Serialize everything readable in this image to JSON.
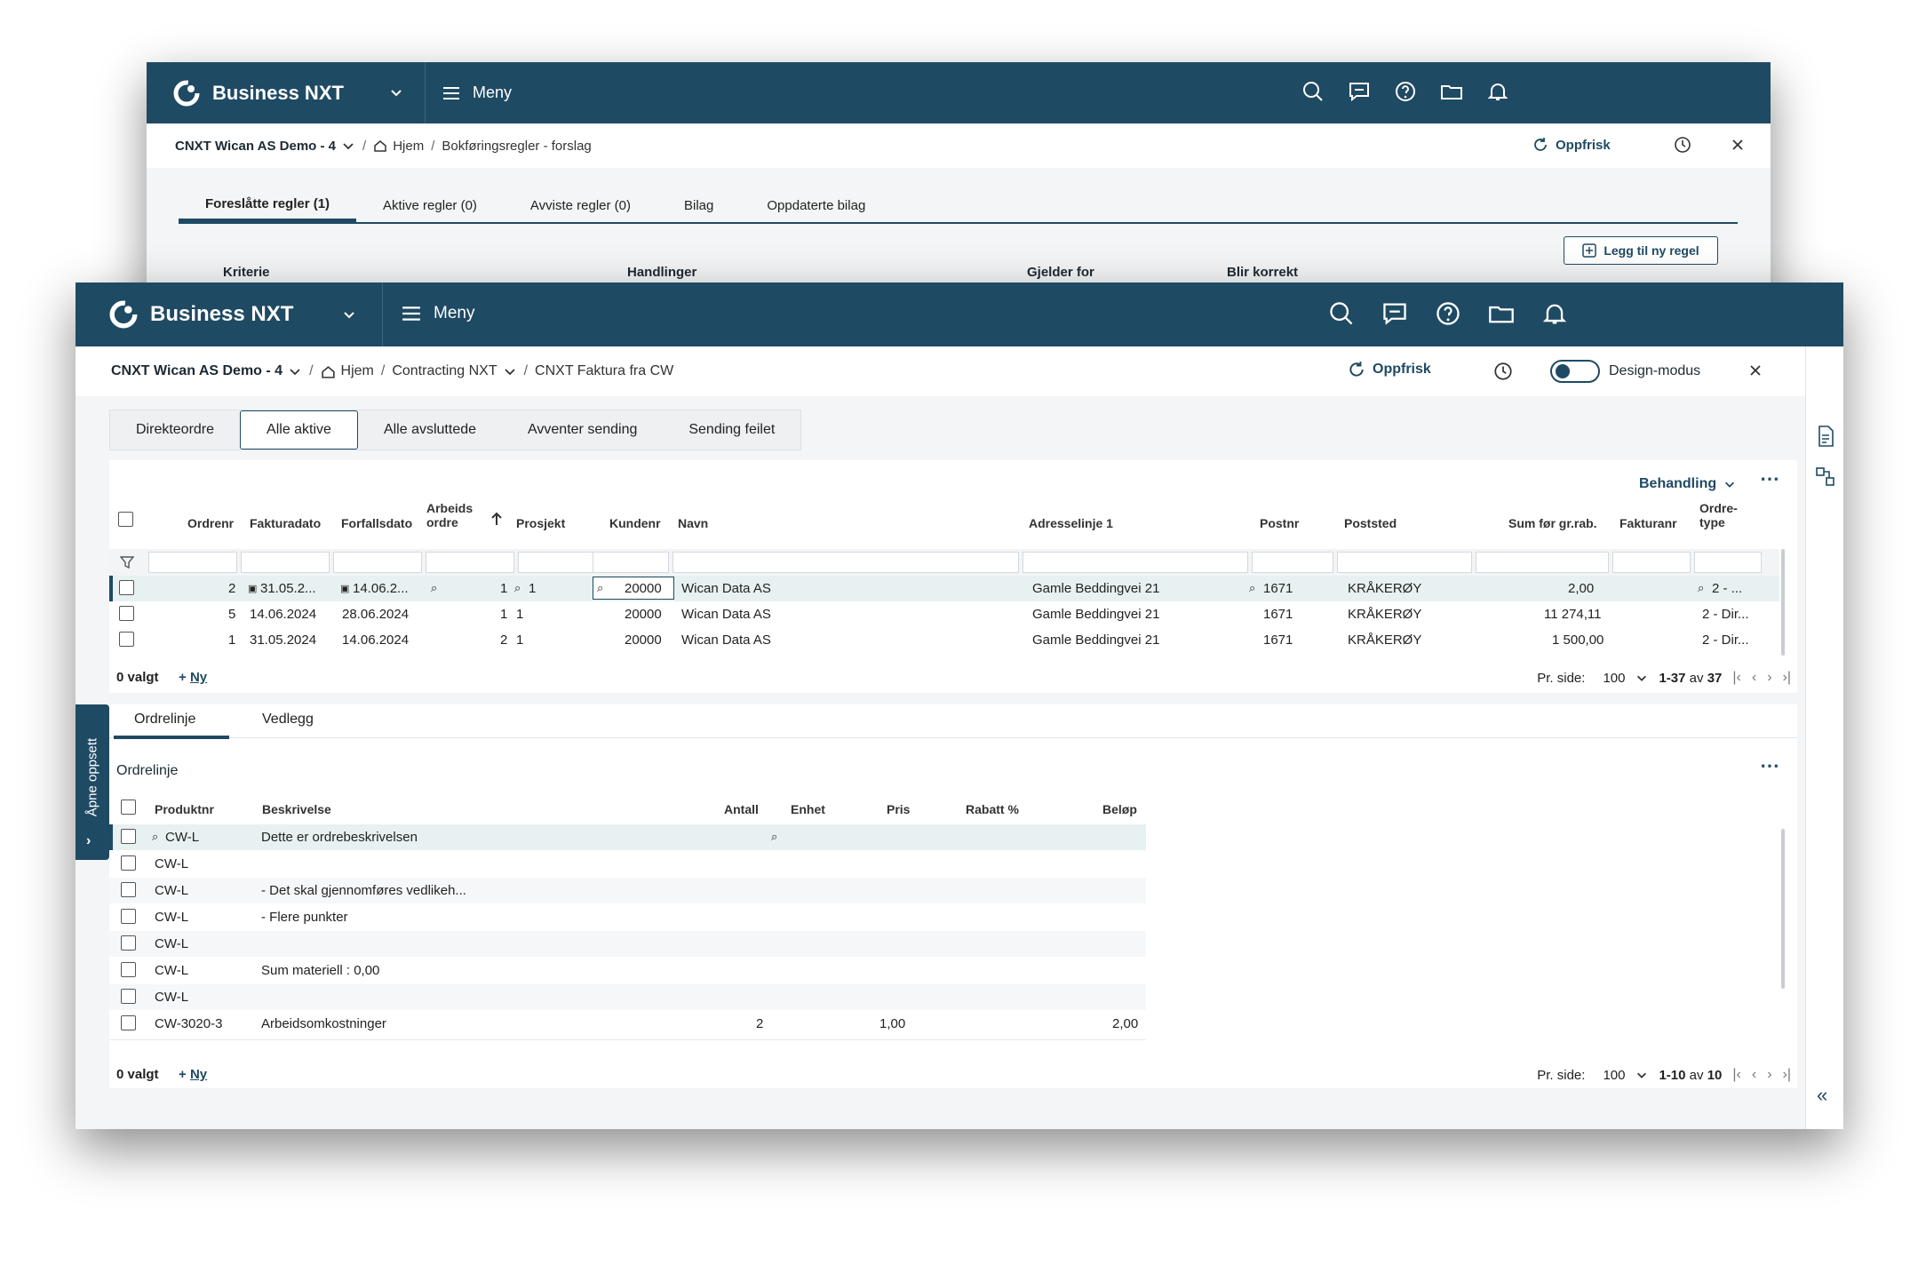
{
  "back_window": {
    "app": {
      "name": "Business NXT"
    },
    "topbar": {
      "menu_label": "Meny"
    },
    "breadcrumb": {
      "company": "CNXT Wican AS Demo - 4",
      "home": "Hjem",
      "page": "Bokføringsregler - forslag"
    },
    "refresh_label": "Oppfrisk",
    "tabs": [
      "Foreslåtte regler (1)",
      "Aktive regler (0)",
      "Avviste regler (0)",
      "Bilag",
      "Oppdaterte bilag"
    ],
    "table_headers": [
      "Kriterie",
      "Handlinger",
      "Gjelder for",
      "Blir korrekt"
    ],
    "add_rule_label": "Legg til ny regel"
  },
  "front_window": {
    "app": {
      "name": "Business NXT"
    },
    "topbar": {
      "menu_label": "Meny"
    },
    "breadcrumb": {
      "company": "CNXT Wican AS Demo - 4",
      "home": "Hjem",
      "module": "Contracting NXT",
      "page": "CNXT Faktura fra CW"
    },
    "refresh_label": "Oppfrisk",
    "design_mode_label": "Design-modus",
    "design_mode_on": false,
    "side_tab_label": "Åpne oppsett",
    "filter_tabs": [
      "Direkteordre",
      "Alle aktive",
      "Alle avsluttede",
      "Avventer sending",
      "Sending feilet"
    ],
    "active_filter_tab": "Alle aktive",
    "orders": {
      "action_label": "Behandling",
      "headers": {
        "ordrenr": "Ordrenr",
        "fakturadato": "Fakturadato",
        "forfallsdato": "Forfallsdato",
        "arbeidsordre_1": "Arbeids",
        "arbeidsordre_2": "ordre",
        "prosjekt": "Prosjekt",
        "kundenr": "Kundenr",
        "navn": "Navn",
        "adresse": "Adresselinje 1",
        "postnr": "Postnr",
        "poststed": "Poststed",
        "sum": "Sum før gr.rab.",
        "fakturanr": "Fakturanr",
        "ordretype_1": "Ordre-",
        "ordretype_2": "type"
      },
      "rows": [
        {
          "ordrenr": "2",
          "fakturadato": "31.05.2...",
          "forfallsdato": "14.06.2...",
          "arbeidsordre": "1",
          "prosjekt": "1",
          "kundenr": "20000",
          "navn": "Wican Data AS",
          "adresse": "Gamle Beddingvei 21",
          "postnr": "1671",
          "poststed": "KRÅKERØY",
          "sum": "2,00",
          "fakturanr": "",
          "ordretype": "2 - ..."
        },
        {
          "ordrenr": "5",
          "fakturadato": "14.06.2024",
          "forfallsdato": "28.06.2024",
          "arbeidsordre": "1",
          "prosjekt": "1",
          "kundenr": "20000",
          "navn": "Wican Data AS",
          "adresse": "Gamle Beddingvei 21",
          "postnr": "1671",
          "poststed": "KRÅKERØY",
          "sum": "11 274,11",
          "fakturanr": "",
          "ordretype": "2 - Dir..."
        },
        {
          "ordrenr": "1",
          "fakturadato": "31.05.2024",
          "forfallsdato": "14.06.2024",
          "arbeidsordre": "2",
          "prosjekt": "1",
          "kundenr": "20000",
          "navn": "Wican Data AS",
          "adresse": "Gamle Beddingvei 21",
          "postnr": "1671",
          "poststed": "KRÅKERØY",
          "sum": "1 500,00",
          "fakturanr": "",
          "ordretype": "2 - Dir..."
        }
      ],
      "footer": {
        "selected": "0 valgt",
        "new": "Ny",
        "per_page_label": "Pr. side:",
        "per_page": "100",
        "range": "1-37",
        "of": "av",
        "total": "37"
      }
    },
    "lines": {
      "tabs": [
        "Ordrelinje",
        "Vedlegg"
      ],
      "section_title": "Ordrelinje",
      "headers": {
        "produktnr": "Produktnr",
        "beskrivelse": "Beskrivelse",
        "antall": "Antall",
        "enhet": "Enhet",
        "pris": "Pris",
        "rabatt": "Rabatt %",
        "belop": "Beløp"
      },
      "rows": [
        {
          "produktnr": "CW-L",
          "beskrivelse": "Dette er ordrebeskrivelsen",
          "antall": "",
          "pris": "",
          "belop": ""
        },
        {
          "produktnr": "CW-L",
          "beskrivelse": "",
          "antall": "",
          "pris": "",
          "belop": ""
        },
        {
          "produktnr": "CW-L",
          "beskrivelse": "- Det skal gjennomføres vedlikeh...",
          "antall": "",
          "pris": "",
          "belop": ""
        },
        {
          "produktnr": "CW-L",
          "beskrivelse": "- Flere punkter",
          "antall": "",
          "pris": "",
          "belop": ""
        },
        {
          "produktnr": "CW-L",
          "beskrivelse": "",
          "antall": "",
          "pris": "",
          "belop": ""
        },
        {
          "produktnr": "CW-L",
          "beskrivelse": "Sum materiell : 0,00",
          "antall": "",
          "pris": "",
          "belop": ""
        },
        {
          "produktnr": "CW-L",
          "beskrivelse": "",
          "antall": "",
          "pris": "",
          "belop": ""
        },
        {
          "produktnr": "CW-3020-3",
          "beskrivelse": "Arbeidsomkostninger",
          "antall": "2",
          "pris": "1,00",
          "belop": "2,00"
        }
      ],
      "footer": {
        "selected": "0 valgt",
        "new": "Ny",
        "per_page_label": "Pr. side:",
        "per_page": "100",
        "range": "1-10",
        "of": "av",
        "total": "10"
      }
    }
  },
  "colors": {
    "primary": "#1f4a63",
    "background": "#f4f5f6",
    "selected_row": "#e8f1f1"
  },
  "icons": [
    "logo-icon",
    "chevron-down-icon",
    "hamburger-icon",
    "search-icon",
    "chat-icon",
    "help-icon",
    "folder-icon",
    "bell-icon",
    "home-icon",
    "refresh-icon",
    "history-icon",
    "close-icon",
    "add-icon",
    "filter-icon",
    "lookup-icon",
    "calendar-icon",
    "sort-up-icon",
    "more-icon",
    "first-page-icon",
    "prev-page-icon",
    "next-page-icon",
    "last-page-icon",
    "document-icon",
    "flow-icon",
    "collapse-icon"
  ]
}
